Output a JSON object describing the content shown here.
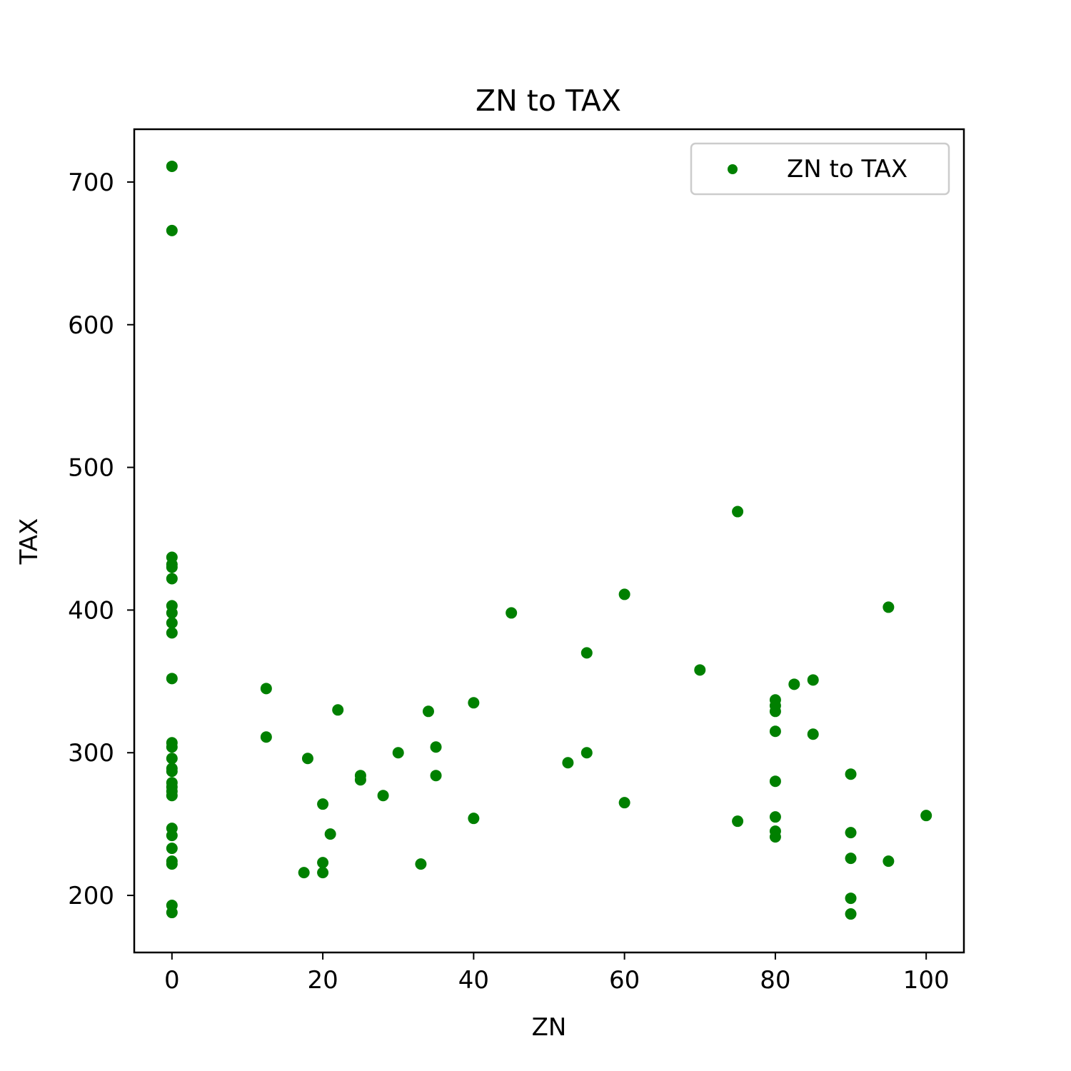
{
  "chart_data": {
    "type": "scatter",
    "title": "ZN to TAX",
    "xlabel": "ZN",
    "ylabel": "TAX",
    "xlim": [
      -5,
      105
    ],
    "ylim": [
      160,
      737
    ],
    "xticks": [
      0,
      20,
      40,
      60,
      80,
      100
    ],
    "yticks": [
      200,
      300,
      400,
      500,
      600,
      700
    ],
    "grid": false,
    "legend_position": "top-right",
    "color": "#008000",
    "series": [
      {
        "name": "ZN to TAX",
        "points": [
          [
            0,
            711
          ],
          [
            0,
            666
          ],
          [
            0,
            437
          ],
          [
            0,
            432
          ],
          [
            0,
            430
          ],
          [
            0,
            422
          ],
          [
            0,
            403
          ],
          [
            0,
            398
          ],
          [
            0,
            391
          ],
          [
            0,
            384
          ],
          [
            0,
            352
          ],
          [
            0,
            307
          ],
          [
            0,
            304
          ],
          [
            0,
            296
          ],
          [
            0,
            289
          ],
          [
            0,
            287
          ],
          [
            0,
            279
          ],
          [
            0,
            276
          ],
          [
            0,
            273
          ],
          [
            0,
            270
          ],
          [
            0,
            247
          ],
          [
            0,
            242
          ],
          [
            0,
            233
          ],
          [
            0,
            224
          ],
          [
            0,
            222
          ],
          [
            0,
            193
          ],
          [
            0,
            188
          ],
          [
            12.5,
            345
          ],
          [
            12.5,
            311
          ],
          [
            17.5,
            216
          ],
          [
            18,
            296
          ],
          [
            20,
            264
          ],
          [
            20,
            223
          ],
          [
            20,
            216
          ],
          [
            21,
            243
          ],
          [
            22,
            330
          ],
          [
            25,
            284
          ],
          [
            25,
            281
          ],
          [
            28,
            270
          ],
          [
            30,
            300
          ],
          [
            33,
            222
          ],
          [
            34,
            329
          ],
          [
            35,
            304
          ],
          [
            35,
            284
          ],
          [
            40,
            335
          ],
          [
            40,
            254
          ],
          [
            45,
            398
          ],
          [
            52.5,
            293
          ],
          [
            55,
            370
          ],
          [
            55,
            300
          ],
          [
            60,
            411
          ],
          [
            60,
            265
          ],
          [
            70,
            358
          ],
          [
            75,
            469
          ],
          [
            75,
            252
          ],
          [
            80,
            337
          ],
          [
            80,
            333
          ],
          [
            80,
            329
          ],
          [
            80,
            315
          ],
          [
            80,
            280
          ],
          [
            80,
            255
          ],
          [
            80,
            245
          ],
          [
            80,
            241
          ],
          [
            82.5,
            348
          ],
          [
            85,
            351
          ],
          [
            85,
            313
          ],
          [
            90,
            285
          ],
          [
            90,
            244
          ],
          [
            90,
            226
          ],
          [
            90,
            198
          ],
          [
            90,
            187
          ],
          [
            95,
            402
          ],
          [
            95,
            224
          ],
          [
            100,
            256
          ]
        ]
      }
    ]
  }
}
